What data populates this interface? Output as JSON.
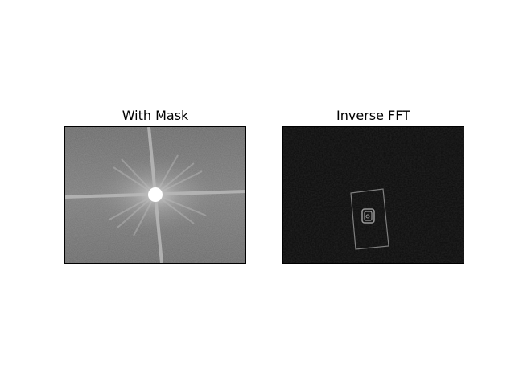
{
  "figure": {
    "panels": [
      {
        "title": "With Mask",
        "image": "fft-magnitude-spectrum-with-masked-center"
      },
      {
        "title": "Inverse FFT",
        "image": "inverse-fft-edge-image"
      }
    ]
  },
  "colors": {
    "spectrum_background": "#7a7a7a",
    "inverse_background": "#0c0c0c",
    "mask": "#ffffff"
  }
}
